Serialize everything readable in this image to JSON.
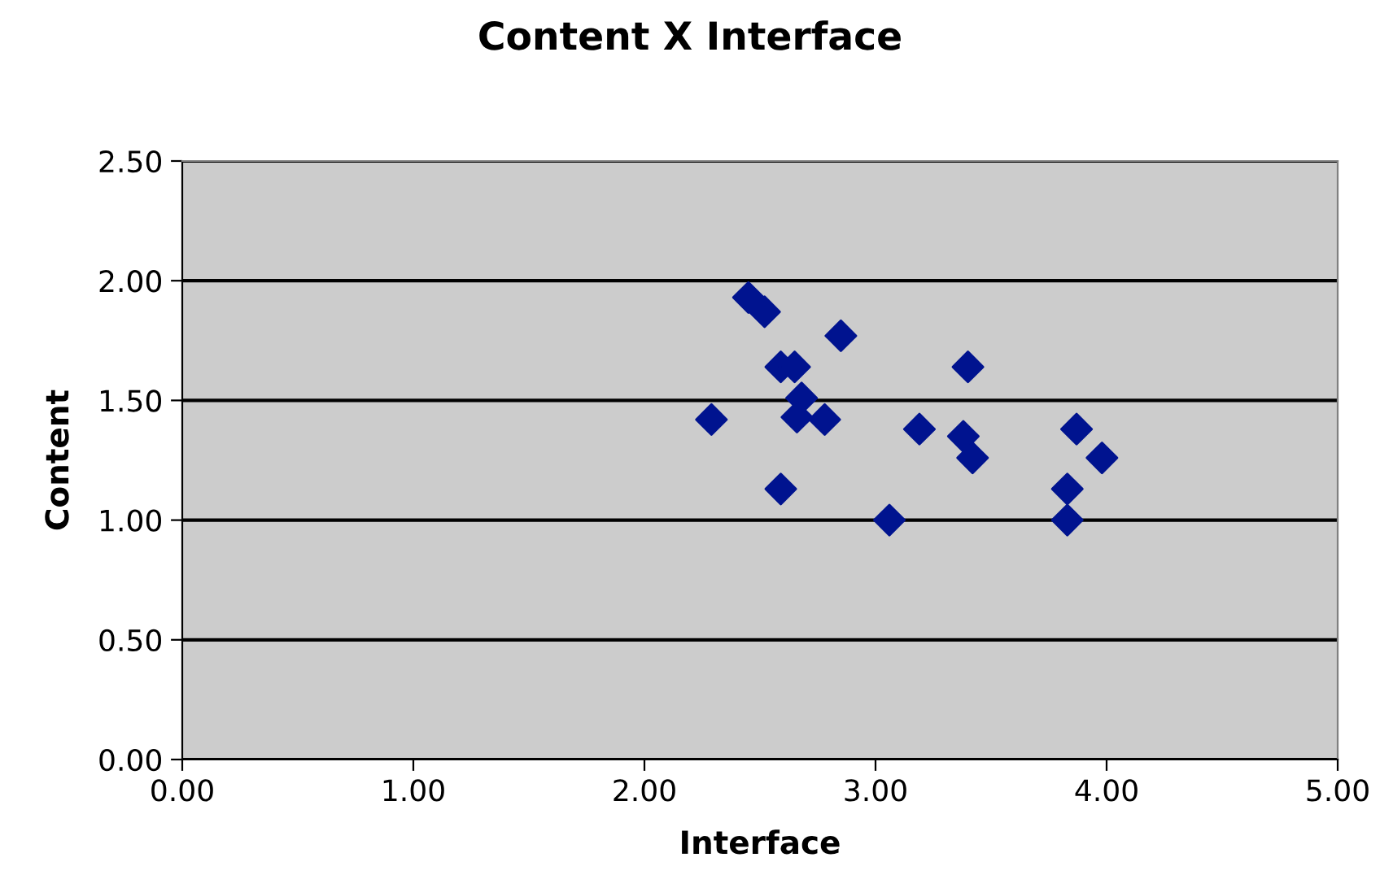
{
  "chart_data": {
    "type": "scatter",
    "title": "Content X Interface",
    "xlabel": "Interface",
    "ylabel": "Content",
    "x": [
      2.45,
      2.52,
      2.85,
      2.59,
      2.65,
      3.4,
      2.68,
      2.29,
      2.66,
      2.78,
      3.19,
      3.38,
      3.42,
      3.87,
      3.98,
      2.59,
      3.83,
      3.06,
      3.83
    ],
    "values": [
      1.93,
      1.87,
      1.77,
      1.64,
      1.64,
      1.64,
      1.51,
      1.42,
      1.43,
      1.42,
      1.38,
      1.35,
      1.26,
      1.38,
      1.26,
      1.13,
      1.13,
      1.0,
      1.0
    ],
    "color": "#00138f",
    "marker": "diamond",
    "grid": "y",
    "legend": false,
    "xlim": [
      0,
      5
    ],
    "xticks": [
      {
        "value": 0,
        "label": "0.00"
      },
      {
        "value": 1,
        "label": "1.00"
      },
      {
        "value": 2,
        "label": "2.00"
      },
      {
        "value": 3,
        "label": "3.00"
      },
      {
        "value": 4,
        "label": "4.00"
      },
      {
        "value": 5,
        "label": "5.00"
      }
    ],
    "ylim": [
      0,
      2.5
    ],
    "yticks": [
      {
        "value": 0,
        "label": "0.00"
      },
      {
        "value": 0.5,
        "label": "0.50"
      },
      {
        "value": 1,
        "label": "1.00"
      },
      {
        "value": 1.5,
        "label": "1.50"
      },
      {
        "value": 2,
        "label": "2.00"
      },
      {
        "value": 2.5,
        "label": "2.50"
      }
    ]
  }
}
